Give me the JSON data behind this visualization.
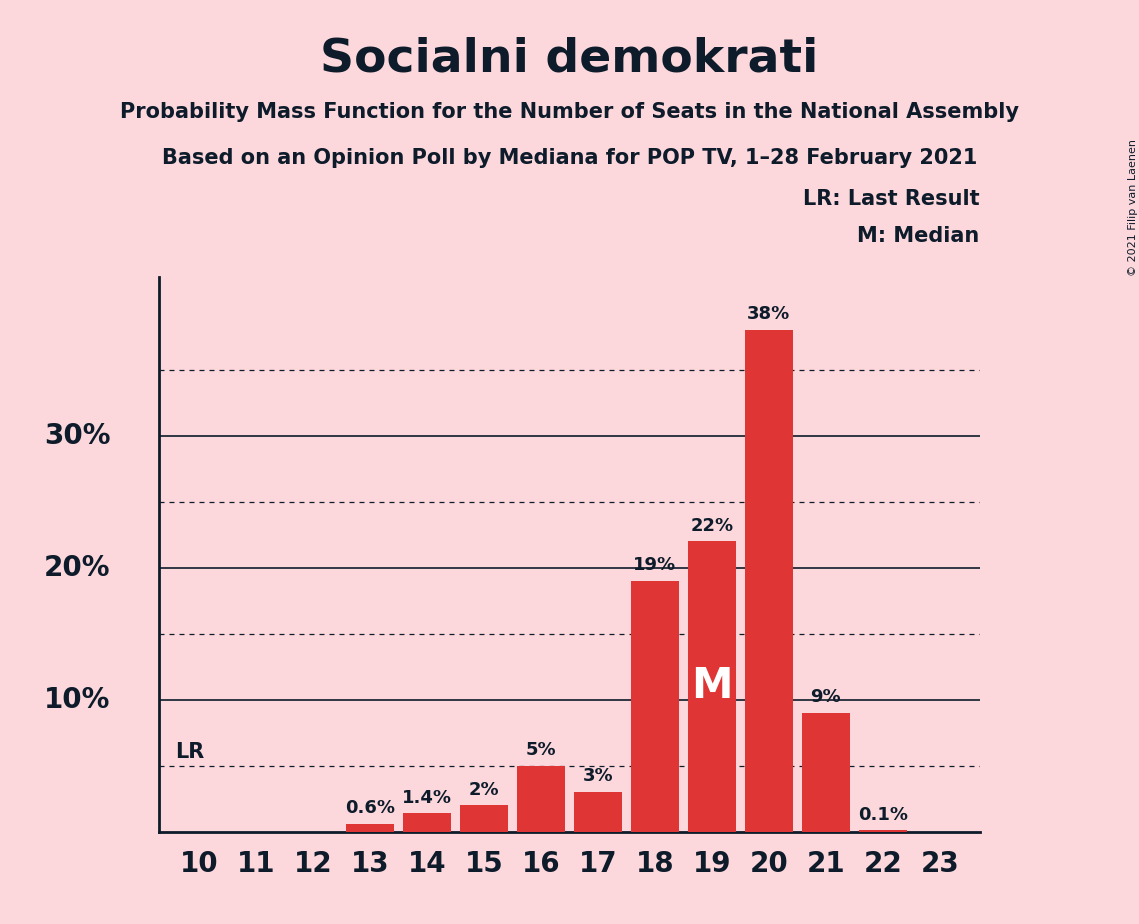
{
  "title": "Socialni demokrati",
  "subtitle1": "Probability Mass Function for the Number of Seats in the National Assembly",
  "subtitle2": "Based on an Opinion Poll by Mediana for POP TV, 1–28 February 2021",
  "copyright": "© 2021 Filip van Laenen",
  "seats": [
    10,
    11,
    12,
    13,
    14,
    15,
    16,
    17,
    18,
    19,
    20,
    21,
    22,
    23
  ],
  "probabilities": [
    0.0,
    0.0,
    0.0,
    0.6,
    1.4,
    2.0,
    5.0,
    3.0,
    19.0,
    22.0,
    38.0,
    9.0,
    0.1,
    0.0
  ],
  "bar_color": "#e03535",
  "background_color": "#fcd8dc",
  "text_color": "#0d1b2a",
  "lr_value": 5.0,
  "median_seat": 19,
  "ylabel_ticks": [
    10,
    20,
    30
  ],
  "dotted_ticks": [
    5,
    15,
    25,
    35
  ],
  "ylim": [
    0,
    42
  ],
  "legend_lr": "LR: Last Result",
  "legend_m": "M: Median"
}
